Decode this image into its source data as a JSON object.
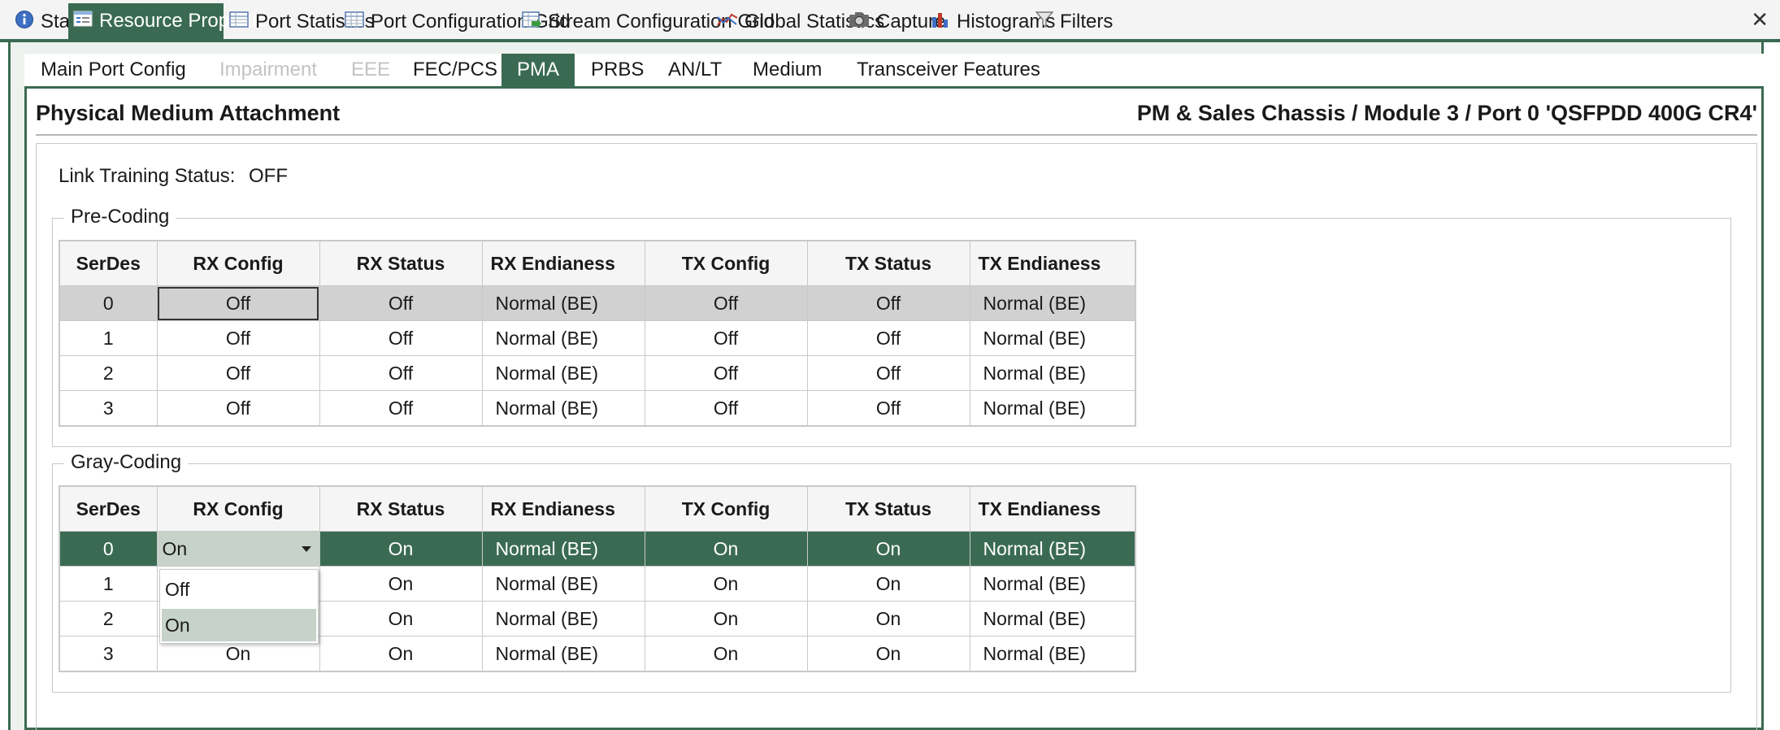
{
  "doc_tabs": [
    {
      "label": "Start",
      "icon": "info-icon"
    },
    {
      "label": "Resource Properties",
      "icon": "properties-icon",
      "active": true
    },
    {
      "label": "Port Statistics",
      "icon": "table-icon"
    },
    {
      "label": "Port Configuration Grid",
      "icon": "grid-icon"
    },
    {
      "label": "Stream Configuration Grid",
      "icon": "grid-arrow-icon"
    },
    {
      "label": "Global Statistics",
      "icon": "line-chart-icon"
    },
    {
      "label": "Capture",
      "icon": "camera-icon"
    },
    {
      "label": "Histograms",
      "icon": "bar-chart-icon"
    },
    {
      "label": "Filters",
      "icon": "funnel-icon"
    }
  ],
  "close_label": "✕",
  "sub_tabs": [
    {
      "label": "Main Port Config"
    },
    {
      "label": "Impairment",
      "disabled": true
    },
    {
      "label": "EEE",
      "disabled": true
    },
    {
      "label": "FEC/PCS"
    },
    {
      "label": "PMA",
      "active": true
    },
    {
      "label": "PRBS"
    },
    {
      "label": "AN/LT"
    },
    {
      "label": "Medium"
    },
    {
      "label": "Transceiver Features"
    }
  ],
  "panel": {
    "title": "Physical Medium Attachment",
    "breadcrumb": "PM & Sales Chassis / Module 3 / Port 0 'QSFPDD 400G CR4'"
  },
  "link_training": {
    "label": "Link Training Status:",
    "value": "OFF"
  },
  "columns": [
    "SerDes",
    "RX Config",
    "RX Status",
    "RX Endianess",
    "TX Config",
    "TX Status",
    "TX Endianess"
  ],
  "pre_coding": {
    "legend": "Pre-Coding",
    "rows": [
      [
        "0",
        "Off",
        "Off",
        "Normal (BE)",
        "Off",
        "Off",
        "Normal (BE)"
      ],
      [
        "1",
        "Off",
        "Off",
        "Normal (BE)",
        "Off",
        "Off",
        "Normal (BE)"
      ],
      [
        "2",
        "Off",
        "Off",
        "Normal (BE)",
        "Off",
        "Off",
        "Normal (BE)"
      ],
      [
        "3",
        "Off",
        "Off",
        "Normal (BE)",
        "Off",
        "Off",
        "Normal (BE)"
      ]
    ]
  },
  "gray_coding": {
    "legend": "Gray-Coding",
    "rows": [
      [
        "0",
        "On",
        "On",
        "Normal (BE)",
        "On",
        "On",
        "Normal (BE)"
      ],
      [
        "1",
        "",
        "On",
        "Normal (BE)",
        "On",
        "On",
        "Normal (BE)"
      ],
      [
        "2",
        "",
        "On",
        "Normal (BE)",
        "On",
        "On",
        "Normal (BE)"
      ],
      [
        "3",
        "On",
        "On",
        "Normal (BE)",
        "On",
        "On",
        "Normal (BE)"
      ]
    ]
  },
  "dropdown": {
    "options": [
      "Off",
      "On"
    ],
    "selected": "On"
  },
  "colors": {
    "accent": "#3a6b52",
    "selection_gray": "#d1d1d1",
    "dropdown_highlight": "#c6d2ca"
  }
}
